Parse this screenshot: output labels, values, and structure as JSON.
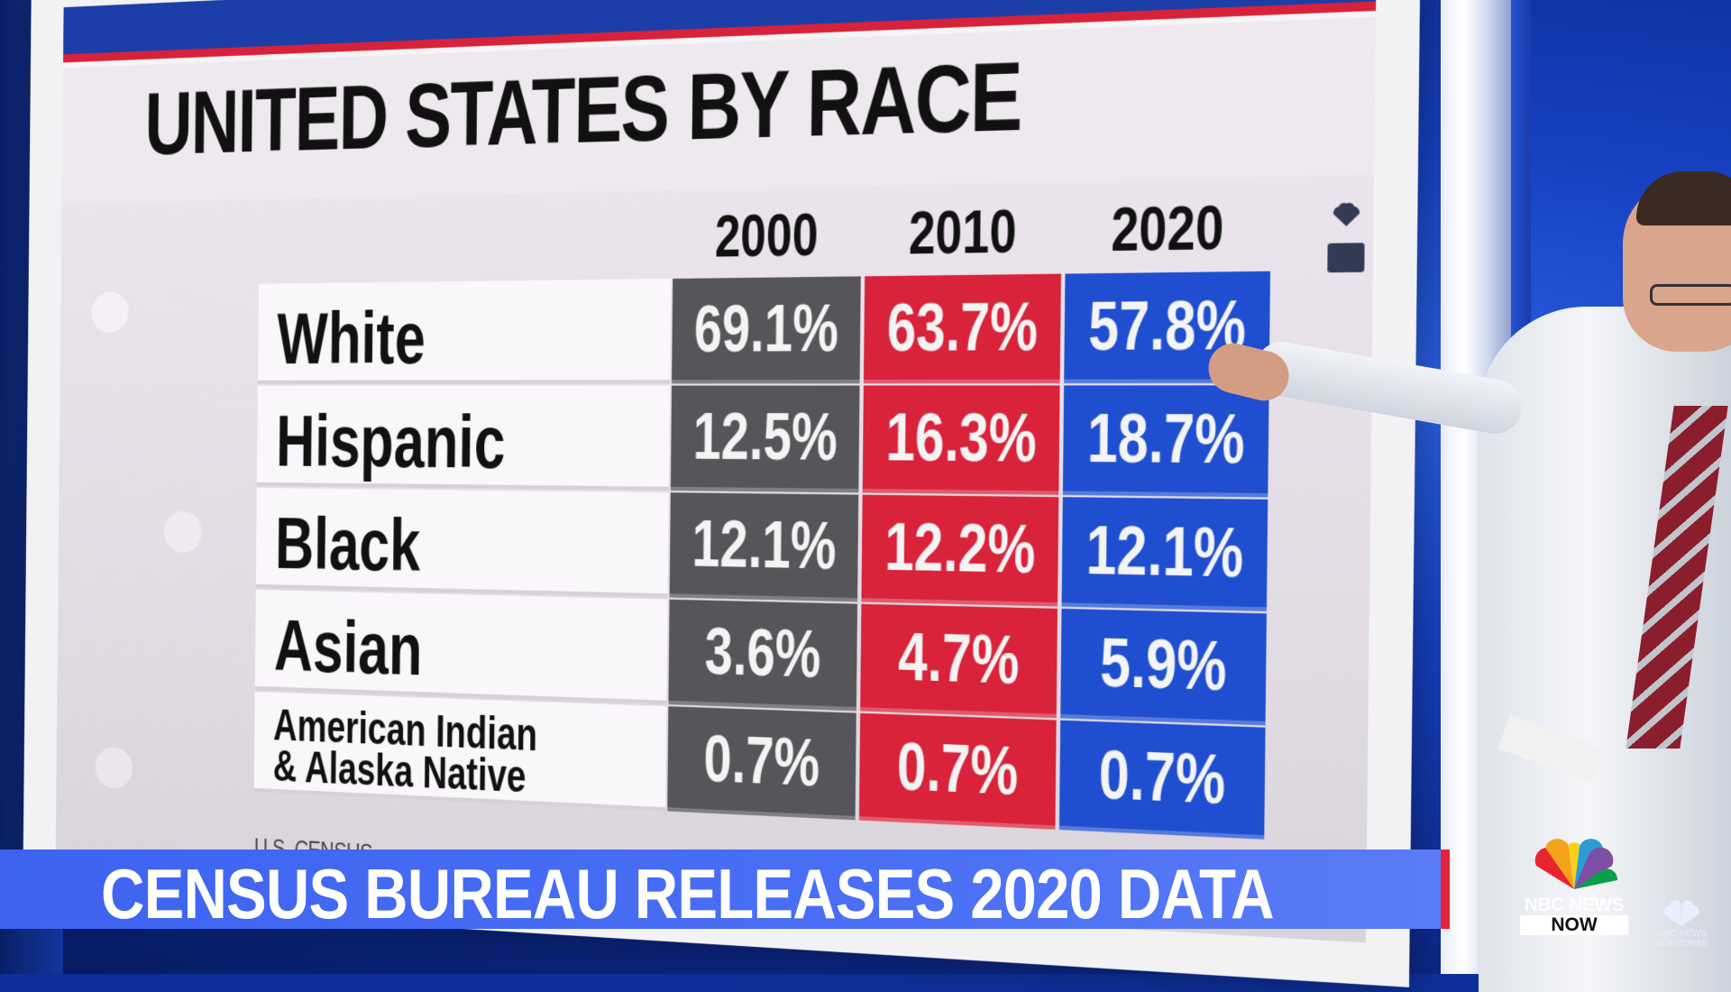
{
  "board": {
    "title": "UNITED STATES BY RACE",
    "source": "U.S. CENSUS",
    "years": [
      "2000",
      "2010",
      "2020"
    ],
    "rows": [
      {
        "label": "White",
        "v2000": "69.1%",
        "v2010": "63.7%",
        "v2020": "57.8%"
      },
      {
        "label": "Hispanic",
        "v2000": "12.5%",
        "v2010": "16.3%",
        "v2020": "18.7%"
      },
      {
        "label": "Black",
        "v2000": "12.1%",
        "v2010": "12.2%",
        "v2020": "12.1%"
      },
      {
        "label": "Asian",
        "v2000": "3.6%",
        "v2010": "4.7%",
        "v2020": "5.9%"
      },
      {
        "label": "American Indian & Alaska Native",
        "v2000": "0.7%",
        "v2010": "0.7%",
        "v2020": "0.7%"
      }
    ],
    "colors": {
      "col2000": "#56565a",
      "col2010": "#d8233a",
      "col2020": "#1f4fd0"
    }
  },
  "lower_third": {
    "headline": "CENSUS BUREAU RELEASES 2020 DATA"
  },
  "branding": {
    "logo_line1": "NBC NEWS",
    "logo_line2": "NOW",
    "subscribe_line1": "NBC NEWS",
    "subscribe_line2": "SUBSCRIBE"
  }
}
